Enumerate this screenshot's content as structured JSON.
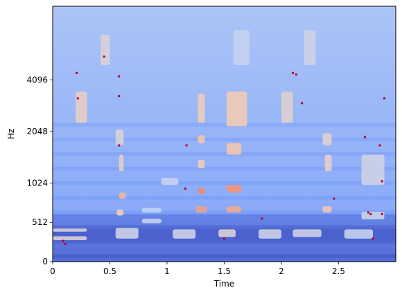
{
  "chart_data": {
    "type": "heatmap",
    "title": "",
    "xlabel": "Time",
    "ylabel": "Hz",
    "xlim": [
      0,
      3.0
    ],
    "x_ticks": [
      {
        "value": 0,
        "label": "0"
      },
      {
        "value": 0.5,
        "label": "0.5"
      },
      {
        "value": 1,
        "label": "1"
      },
      {
        "value": 1.5,
        "label": "1.5"
      },
      {
        "value": 2,
        "label": "2"
      },
      {
        "value": 2.5,
        "label": "2.5"
      }
    ],
    "y_scale": "mel",
    "ylim": [
      0,
      11025
    ],
    "y_ticks": [
      {
        "value": 0,
        "label": "0"
      },
      {
        "value": 512,
        "label": "512"
      },
      {
        "value": 1024,
        "label": "1024"
      },
      {
        "value": 2048,
        "label": "2048"
      },
      {
        "value": 4096,
        "label": "4096"
      }
    ],
    "colormap": "coolwarm",
    "colormap_stops": [
      "#3b4cc0",
      "#7b9ff9",
      "#c0d4f5",
      "#f2cbb7",
      "#ee8468",
      "#b40426"
    ],
    "background_intensity": 0.22,
    "low_band_intensity": 0.08,
    "features": [
      {
        "name": "harmonic",
        "t": [
          0.0,
          0.3
        ],
        "f": [
          280,
          330
        ],
        "i": 0.5
      },
      {
        "name": "harmonic",
        "t": [
          0.0,
          0.3
        ],
        "f": [
          390,
          430
        ],
        "i": 0.48
      },
      {
        "name": "harmonic",
        "t": [
          0.2,
          0.3
        ],
        "f": [
          2300,
          3500
        ],
        "i": 0.55
      },
      {
        "name": "harmonic",
        "t": [
          0.42,
          0.5
        ],
        "f": [
          5000,
          7500
        ],
        "i": 0.5
      },
      {
        "name": "harmonic",
        "t": [
          0.55,
          0.75
        ],
        "f": [
          300,
          440
        ],
        "i": 0.45
      },
      {
        "name": "harmonic",
        "t": [
          0.56,
          0.62
        ],
        "f": [
          600,
          680
        ],
        "i": 0.6
      },
      {
        "name": "harmonic",
        "t": [
          0.58,
          0.64
        ],
        "f": [
          820,
          900
        ],
        "i": 0.66
      },
      {
        "name": "harmonic",
        "t": [
          0.58,
          0.62
        ],
        "f": [
          1200,
          1500
        ],
        "i": 0.55
      },
      {
        "name": "harmonic",
        "t": [
          0.55,
          0.62
        ],
        "f": [
          1700,
          2100
        ],
        "i": 0.5
      },
      {
        "name": "harmonic",
        "t": [
          0.78,
          0.95
        ],
        "f": [
          500,
          560
        ],
        "i": 0.42
      },
      {
        "name": "harmonic",
        "t": [
          0.78,
          0.95
        ],
        "f": [
          640,
          700
        ],
        "i": 0.4
      },
      {
        "name": "harmonic",
        "t": [
          0.95,
          1.1
        ],
        "f": [
          1000,
          1100
        ],
        "i": 0.42
      },
      {
        "name": "harmonic",
        "t": [
          1.05,
          1.25
        ],
        "f": [
          300,
          420
        ],
        "i": 0.45
      },
      {
        "name": "harmonic",
        "t": [
          1.25,
          1.35
        ],
        "f": [
          640,
          720
        ],
        "i": 0.72
      },
      {
        "name": "harmonic",
        "t": [
          1.27,
          1.33
        ],
        "f": [
          880,
          960
        ],
        "i": 0.78
      },
      {
        "name": "harmonic",
        "t": [
          1.27,
          1.33
        ],
        "f": [
          1250,
          1400
        ],
        "i": 0.6
      },
      {
        "name": "harmonic",
        "t": [
          1.27,
          1.33
        ],
        "f": [
          1750,
          1950
        ],
        "i": 0.62
      },
      {
        "name": "harmonic",
        "t": [
          1.27,
          1.33
        ],
        "f": [
          2300,
          3400
        ],
        "i": 0.58
      },
      {
        "name": "harmonic",
        "t": [
          1.45,
          1.6
        ],
        "f": [
          320,
          420
        ],
        "i": 0.5
      },
      {
        "name": "harmonic",
        "t": [
          1.52,
          1.65
        ],
        "f": [
          640,
          720
        ],
        "i": 0.7
      },
      {
        "name": "harmonic",
        "t": [
          1.52,
          1.65
        ],
        "f": [
          900,
          1000
        ],
        "i": 0.75
      },
      {
        "name": "harmonic",
        "t": [
          1.52,
          1.65
        ],
        "f": [
          1500,
          1750
        ],
        "i": 0.62
      },
      {
        "name": "harmonic",
        "t": [
          1.52,
          1.7
        ],
        "f": [
          2200,
          3500
        ],
        "i": 0.6
      },
      {
        "name": "harmonic",
        "t": [
          1.58,
          1.72
        ],
        "f": [
          5000,
          8000
        ],
        "i": 0.42
      },
      {
        "name": "harmonic",
        "t": [
          1.8,
          2.0
        ],
        "f": [
          300,
          420
        ],
        "i": 0.45
      },
      {
        "name": "harmonic",
        "t": [
          2.0,
          2.1
        ],
        "f": [
          2300,
          3500
        ],
        "i": 0.52
      },
      {
        "name": "harmonic",
        "t": [
          2.2,
          2.3
        ],
        "f": [
          5000,
          8000
        ],
        "i": 0.45
      },
      {
        "name": "harmonic",
        "t": [
          2.1,
          2.35
        ],
        "f": [
          320,
          420
        ],
        "i": 0.45
      },
      {
        "name": "harmonic",
        "t": [
          2.36,
          2.44
        ],
        "f": [
          640,
          720
        ],
        "i": 0.62
      },
      {
        "name": "harmonic",
        "t": [
          2.38,
          2.44
        ],
        "f": [
          1200,
          1500
        ],
        "i": 0.55
      },
      {
        "name": "harmonic",
        "t": [
          2.36,
          2.44
        ],
        "f": [
          1700,
          2000
        ],
        "i": 0.52
      },
      {
        "name": "harmonic",
        "t": [
          2.55,
          2.8
        ],
        "f": [
          300,
          420
        ],
        "i": 0.42
      },
      {
        "name": "harmonic",
        "t": [
          2.7,
          2.9
        ],
        "f": [
          550,
          650
        ],
        "i": 0.44
      },
      {
        "name": "harmonic",
        "t": [
          2.7,
          2.9
        ],
        "f": [
          1000,
          1500
        ],
        "i": 0.45
      }
    ],
    "hot_pixels": [
      {
        "t": 0.09,
        "f": 270
      },
      {
        "t": 0.11,
        "f": 230
      },
      {
        "t": 0.21,
        "f": 4500
      },
      {
        "t": 0.22,
        "f": 3200
      },
      {
        "t": 0.45,
        "f": 5600
      },
      {
        "t": 0.58,
        "f": 3300
      },
      {
        "t": 0.58,
        "f": 4300
      },
      {
        "t": 0.58,
        "f": 1700
      },
      {
        "t": 1.17,
        "f": 1700
      },
      {
        "t": 1.16,
        "f": 950
      },
      {
        "t": 1.5,
        "f": 300
      },
      {
        "t": 1.83,
        "f": 560
      },
      {
        "t": 2.1,
        "f": 4500
      },
      {
        "t": 2.13,
        "f": 4400
      },
      {
        "t": 2.18,
        "f": 3000
      },
      {
        "t": 2.46,
        "f": 820
      },
      {
        "t": 2.73,
        "f": 1900
      },
      {
        "t": 2.76,
        "f": 640
      },
      {
        "t": 2.78,
        "f": 620
      },
      {
        "t": 2.8,
        "f": 300
      },
      {
        "t": 2.88,
        "f": 1050
      },
      {
        "t": 2.88,
        "f": 620
      },
      {
        "t": 2.9,
        "f": 3200
      },
      {
        "t": 2.86,
        "f": 1700
      }
    ]
  }
}
